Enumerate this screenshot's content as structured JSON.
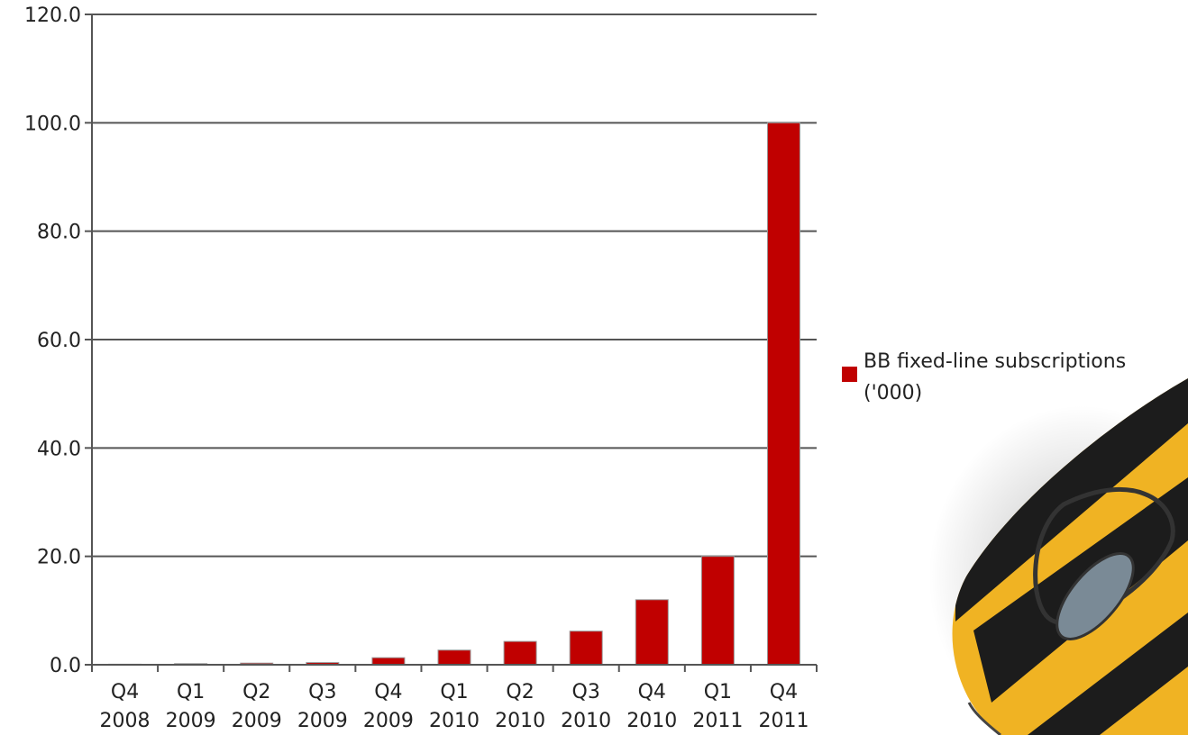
{
  "chart_data": {
    "type": "bar",
    "categories": [
      [
        "Q4",
        "2008"
      ],
      [
        "Q1",
        "2009"
      ],
      [
        "Q2",
        "2009"
      ],
      [
        "Q3",
        "2009"
      ],
      [
        "Q4",
        "2009"
      ],
      [
        "Q1",
        "2010"
      ],
      [
        "Q2",
        "2010"
      ],
      [
        "Q3",
        "2010"
      ],
      [
        "Q4",
        "2010"
      ],
      [
        "Q1",
        "2011"
      ],
      [
        "Q4",
        "2011"
      ]
    ],
    "series": [
      {
        "name": "BB fixed-line subscriptions ('000)",
        "color": "#c00000",
        "values": [
          0.1,
          0.2,
          0.3,
          0.4,
          1.3,
          2.7,
          4.3,
          6.2,
          12.0,
          20.0,
          100.0
        ]
      }
    ],
    "ylim": [
      0,
      120
    ],
    "yticks": [
      "0.0",
      "20.0",
      "40.0",
      "60.0",
      "80.0",
      "100.0",
      "120.0"
    ],
    "grid": true,
    "legend_position": "right",
    "legend_lines": [
      "BB fixed-line subscriptions",
      "('000)"
    ]
  },
  "decoration": {
    "image": "computer-mouse-striped-yellow-black",
    "colors": {
      "yellow": "#f0b323",
      "black": "#1c1c1c",
      "grey": "#7a8a96"
    }
  }
}
